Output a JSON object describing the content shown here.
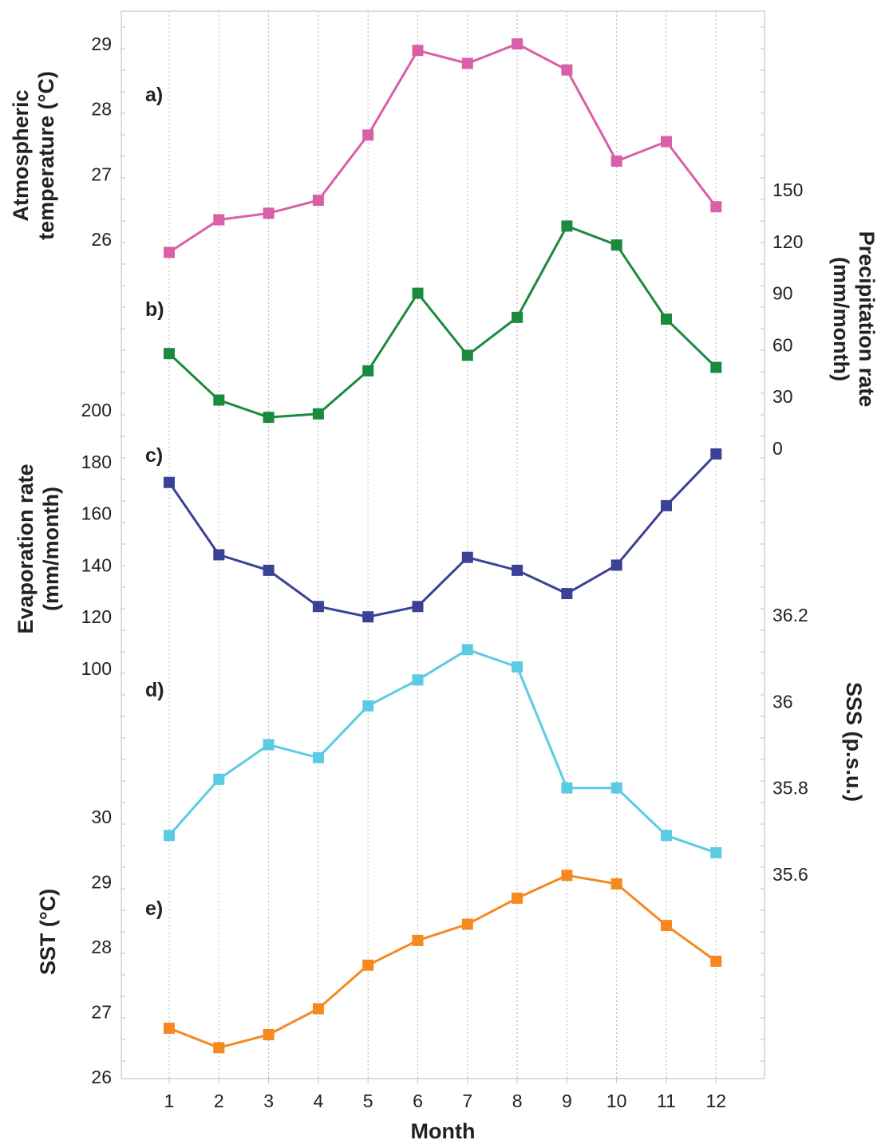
{
  "chart_data": {
    "type": "line",
    "xlabel": "Month",
    "x": [
      1,
      2,
      3,
      4,
      5,
      6,
      7,
      8,
      9,
      10,
      11,
      12
    ],
    "grid": true,
    "panels": [
      {
        "id": "a",
        "label": "a)",
        "ylabel": [
          "Atmospheric",
          "temperature (°C)"
        ],
        "axis_side": "left",
        "yticks": [
          26,
          27,
          28,
          29
        ],
        "color": "#d95fa7",
        "values": [
          25.8,
          26.3,
          26.4,
          26.6,
          27.6,
          28.9,
          28.7,
          29.0,
          28.6,
          27.2,
          27.5,
          26.5
        ]
      },
      {
        "id": "b",
        "label": "b)",
        "ylabel": [
          "Precipitation rate",
          "(mm/month)"
        ],
        "axis_side": "right",
        "yticks": [
          0,
          30,
          60,
          90,
          120,
          150
        ],
        "color": "#1a8a3e",
        "values": [
          55,
          28,
          18,
          20,
          45,
          90,
          54,
          76,
          129,
          118,
          75,
          47
        ]
      },
      {
        "id": "c",
        "label": "c)",
        "ylabel": [
          "Evaporation rate",
          "(mm/month)"
        ],
        "axis_side": "left",
        "yticks": [
          100,
          120,
          140,
          160,
          180,
          200
        ],
        "color": "#3b4295",
        "values": [
          172,
          144,
          138,
          124,
          120,
          124,
          143,
          138,
          129,
          140,
          163,
          183
        ]
      },
      {
        "id": "d",
        "label": "d)",
        "ylabel": [
          "SSS (p.s.u.)"
        ],
        "axis_side": "right",
        "yticks": [
          35.6,
          35.8,
          36,
          36.2
        ],
        "ytick_labels": [
          "35.6",
          "35.8",
          "36",
          "36.2"
        ],
        "color": "#5bcbe3",
        "values": [
          35.69,
          35.82,
          35.9,
          35.87,
          35.99,
          36.05,
          36.12,
          36.08,
          35.8,
          35.8,
          35.69,
          35.65
        ]
      },
      {
        "id": "e",
        "label": "e)",
        "ylabel": [
          "SST (°C)"
        ],
        "axis_side": "left",
        "yticks": [
          26,
          27,
          28,
          29,
          30
        ],
        "color": "#f5891f",
        "values": [
          26.75,
          26.45,
          26.65,
          27.05,
          27.72,
          28.1,
          28.35,
          28.75,
          29.1,
          28.97,
          28.33,
          27.78
        ]
      }
    ]
  }
}
